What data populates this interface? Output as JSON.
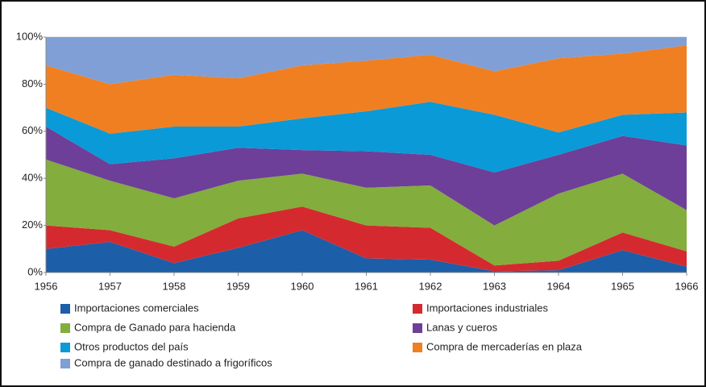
{
  "chart_data": {
    "type": "area_stacked_percent",
    "categories": [
      "1956",
      "1957",
      "1958",
      "1959",
      "1960",
      "1961",
      "1962",
      "1963",
      "1964",
      "1965",
      "1966"
    ],
    "series": [
      {
        "name": "Importaciones comerciales",
        "color": "#1c5ea8",
        "values": [
          10,
          13,
          4,
          10.5,
          18,
          6,
          5.5,
          0.5,
          1,
          9.5,
          2.5
        ]
      },
      {
        "name": "Importaciones industriales",
        "color": "#d42a2f",
        "values": [
          10,
          5,
          7,
          12.5,
          10,
          14,
          13.5,
          2.5,
          4,
          7.5,
          6.5
        ]
      },
      {
        "name": "Compra de Ganado para hacienda",
        "color": "#83ad3c",
        "values": [
          28,
          21,
          20.5,
          16,
          14,
          16,
          18,
          17,
          28.5,
          25,
          17.5
        ]
      },
      {
        "name": "Lanas y cueros",
        "color": "#6d3f98",
        "values": [
          14,
          7,
          17,
          14,
          10,
          15.5,
          13,
          22.5,
          16.5,
          16,
          27.5
        ]
      },
      {
        "name": "Otros productos del país",
        "color": "#0a9ad8",
        "values": [
          8,
          13,
          13.5,
          9,
          13.5,
          17,
          22.5,
          24.5,
          9.5,
          9,
          14
        ]
      },
      {
        "name": "Compra de mercaderías en plaza",
        "color": "#f07f22",
        "values": [
          18,
          21,
          22,
          20.5,
          22.5,
          21.5,
          20,
          18.5,
          31.5,
          26,
          28.5
        ]
      },
      {
        "name": "Compra de ganado destinado a frigoríficos",
        "color": "#7f9fd6",
        "values": [
          12,
          20,
          16,
          17.5,
          12,
          10,
          7.5,
          14.5,
          9,
          7,
          3.5
        ]
      }
    ],
    "ylim": [
      0,
      100
    ],
    "yticks": [
      {
        "value": 0,
        "label": "0%"
      },
      {
        "value": 20,
        "label": "20%"
      },
      {
        "value": 40,
        "label": "40%"
      },
      {
        "value": 60,
        "label": "60%"
      },
      {
        "value": 80,
        "label": "80%"
      },
      {
        "value": 100,
        "label": "100%"
      }
    ],
    "grid": true,
    "legend": "bottom"
  }
}
